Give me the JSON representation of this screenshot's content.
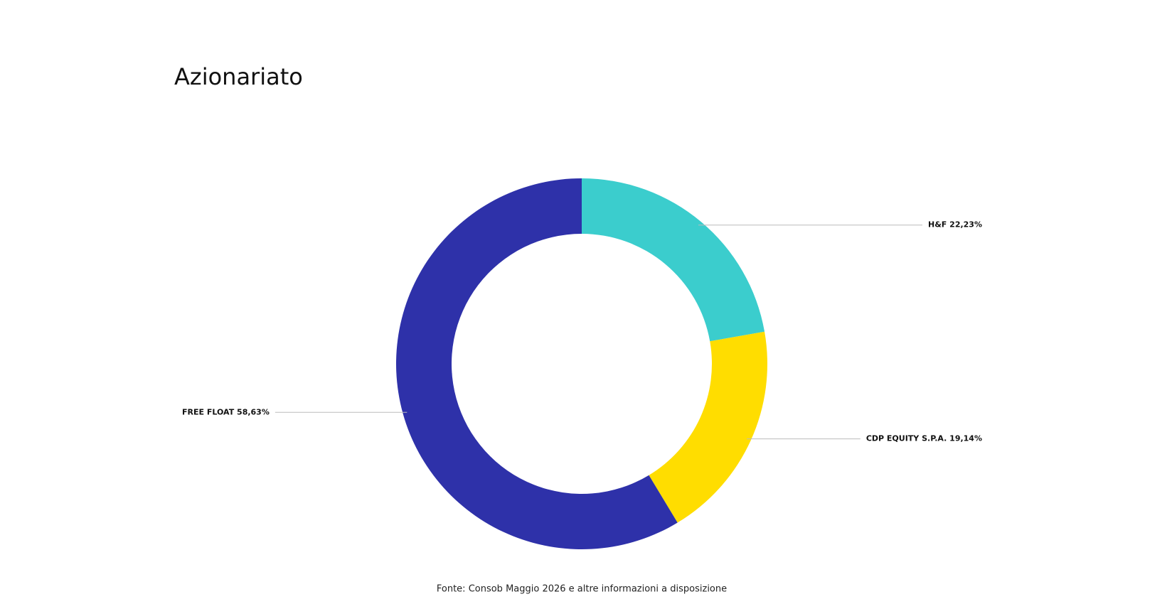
{
  "chart_data": {
    "type": "donut",
    "title": "Azionariato",
    "categories": [
      "H&F",
      "CDP EQUITY S.P.A.",
      "FREE FLOAT"
    ],
    "values": [
      22.23,
      19.14,
      58.63
    ],
    "value_labels": [
      "22,23%",
      "19,14%",
      "58,63%"
    ],
    "colors": [
      "#3bcdcd",
      "#ffdd00",
      "#2e31a9"
    ],
    "source": "Fonte: Consob Maggio 2026 e altre informazioni a disposizione"
  }
}
